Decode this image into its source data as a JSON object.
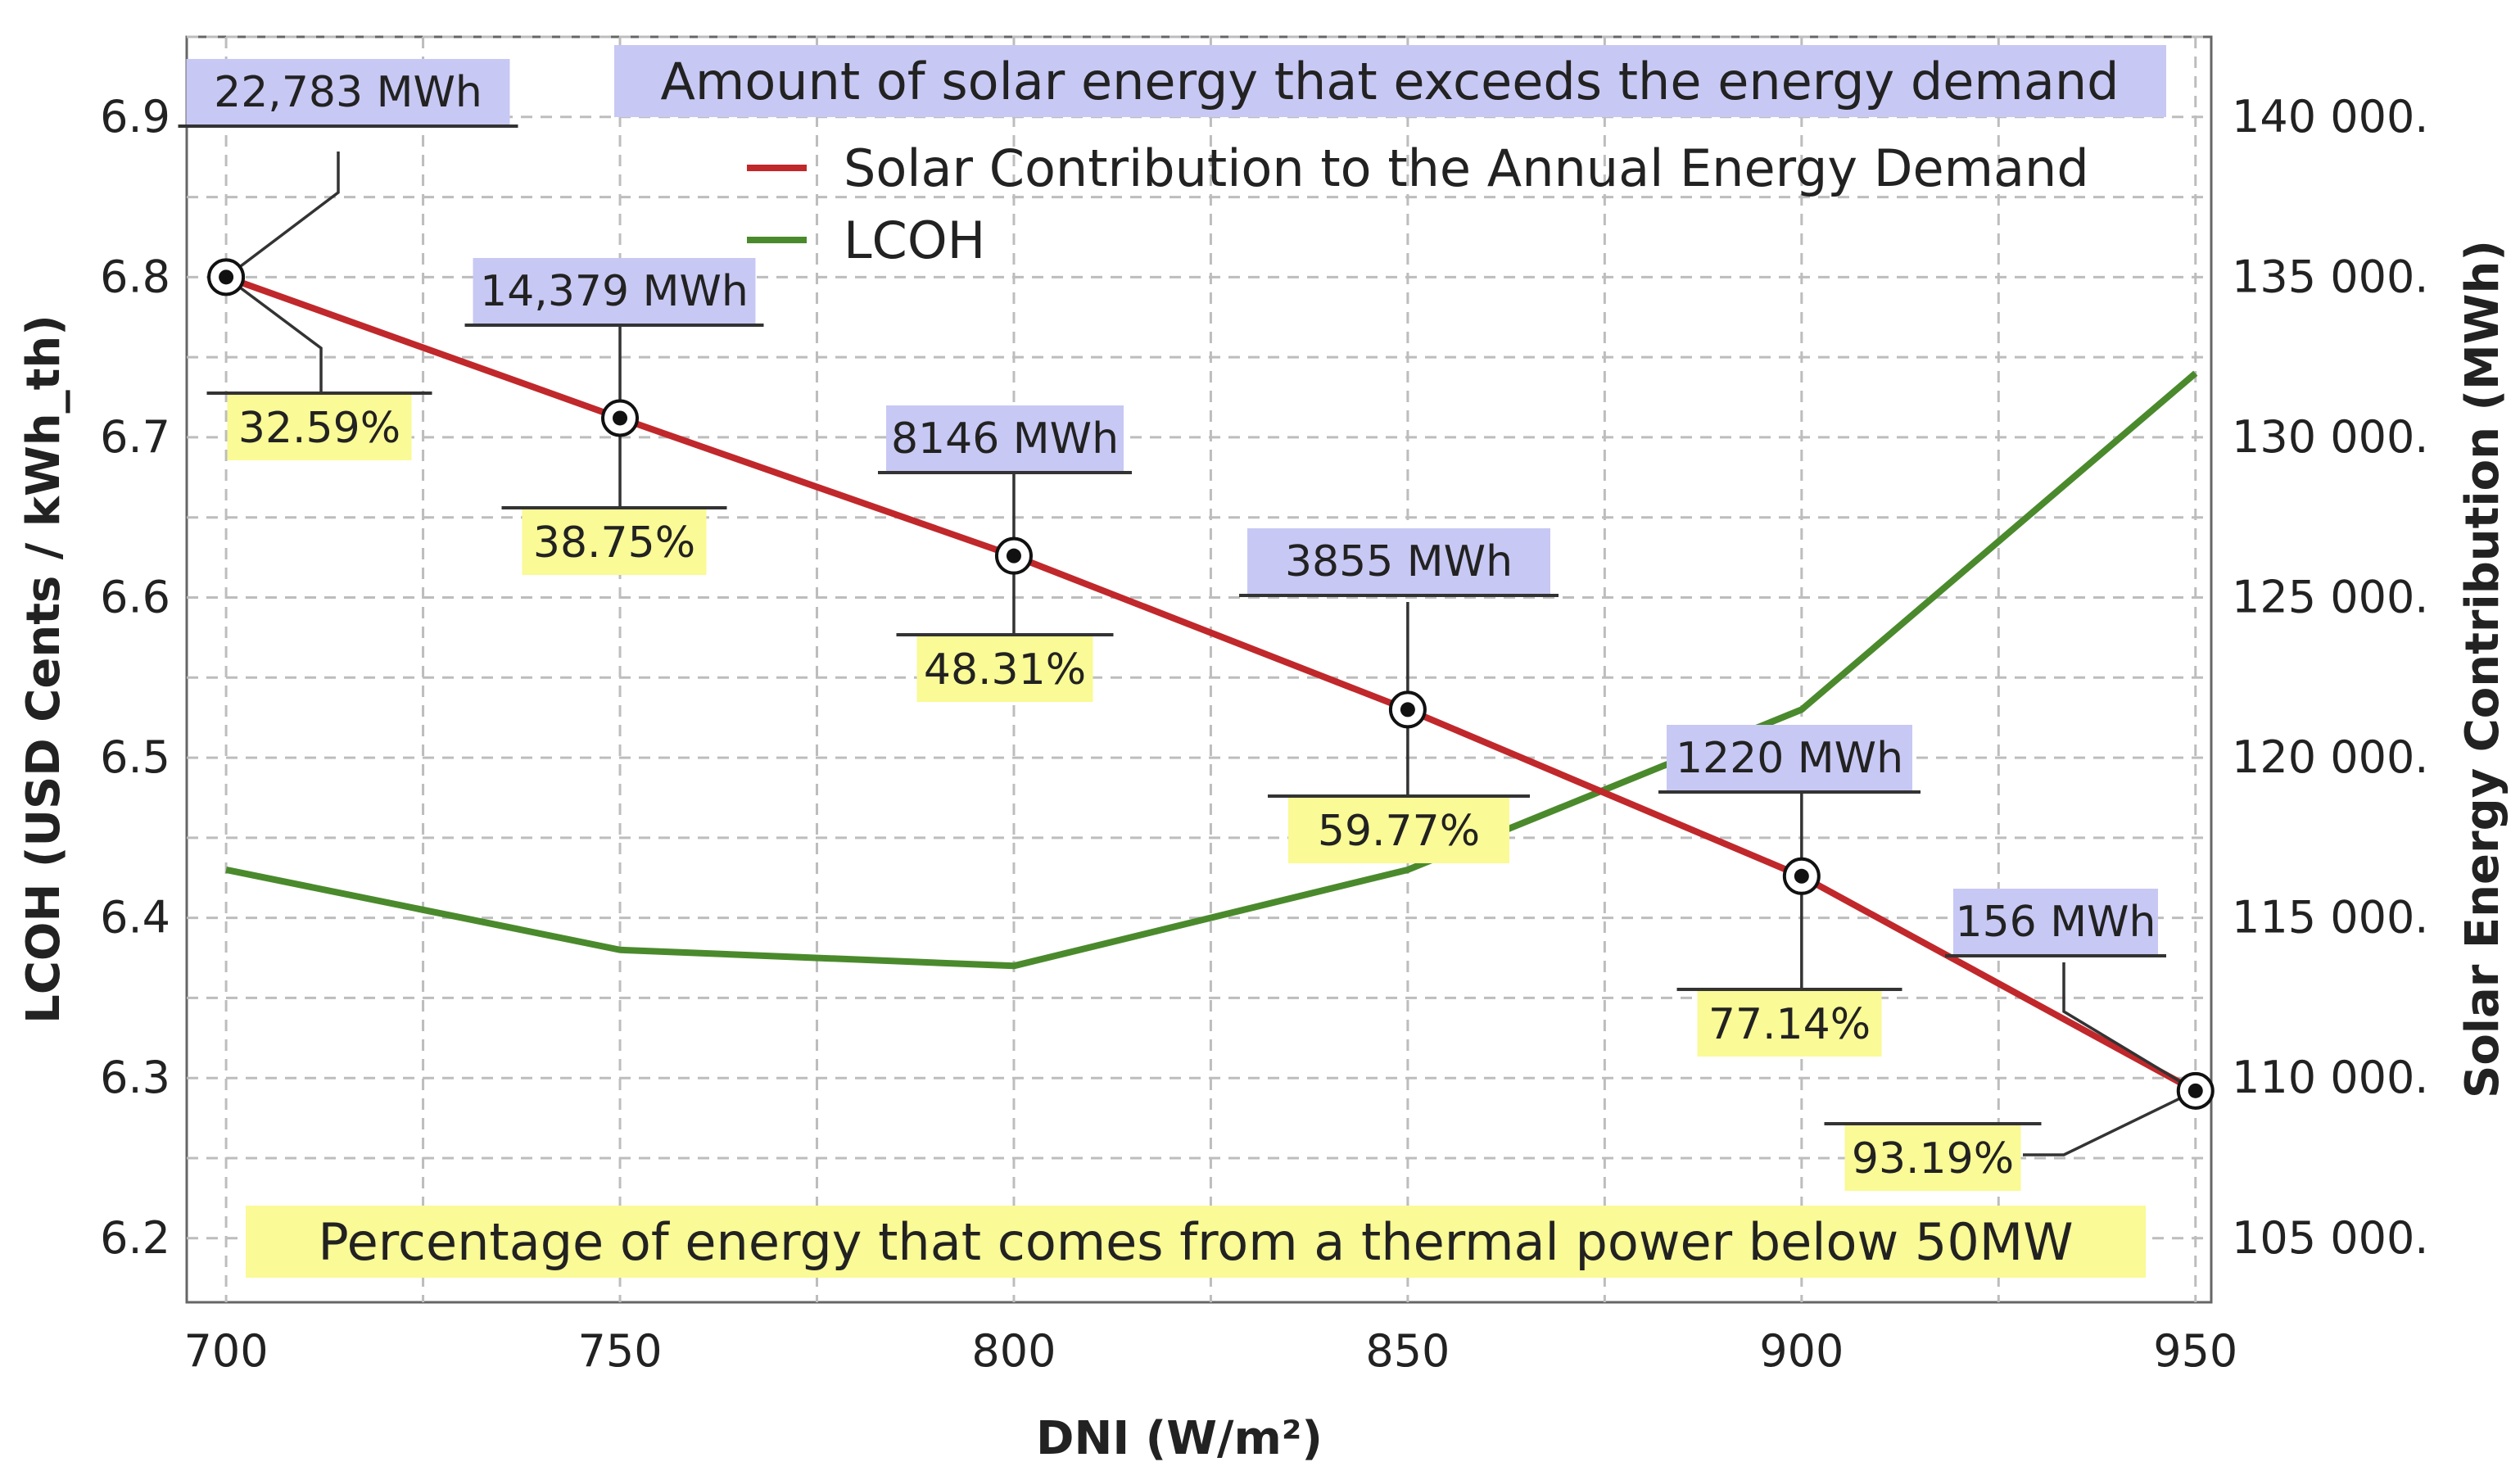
{
  "chart_data": {
    "type": "line",
    "title": "",
    "xlabel": "DNI (W/m²)",
    "ylabel_left": "LCOH (USD Cents / kWh_th)",
    "ylabel_right": "Solar Energy Contribution (MWh)",
    "x": [
      700,
      750,
      800,
      850,
      900,
      950
    ],
    "x_ticks": [
      "700",
      "750",
      "800",
      "850",
      "900",
      "950"
    ],
    "xlim": [
      695,
      952
    ],
    "ylim_left": [
      6.16,
      6.95
    ],
    "ylim_right": [
      103000,
      142500
    ],
    "y_left_ticks": [
      6.2,
      6.3,
      6.4,
      6.5,
      6.6,
      6.7,
      6.8,
      6.9
    ],
    "y_left_tick_labels": [
      "6.2",
      "6.3",
      "6.4",
      "6.5",
      "6.6",
      "6.7",
      "6.8",
      "6.9"
    ],
    "y_right_ticks": [
      105000,
      110000,
      115000,
      120000,
      125000,
      130000,
      135000,
      140000
    ],
    "y_right_tick_labels": [
      "105 000.",
      "110 000.",
      "115 000.",
      "120 000.",
      "125 000.",
      "130 000.",
      "135 000.",
      "140 000."
    ],
    "grid": true,
    "series": [
      {
        "name": "Solar Contribution to the Annual Energy Demand",
        "axis": "right",
        "color": "#c0282b",
        "values": [
          135000,
          130600,
          126300,
          121500,
          116300,
          109600
        ]
      },
      {
        "name": "LCOH",
        "axis": "left",
        "color": "#4a8a2c",
        "values": [
          6.43,
          6.38,
          6.37,
          6.43,
          6.53,
          6.74
        ]
      }
    ],
    "excess_energy_labels": [
      "22,783 MWh",
      "14,379 MWh",
      "8146 MWh",
      "3855 MWh",
      "1220 MWh",
      "156 MWh"
    ],
    "thermal_below_50mw_labels": [
      "32.59%",
      "38.75%",
      "48.31%",
      "59.77%",
      "77.14%",
      "93.19%"
    ],
    "annotations": [
      "Amount of solar energy that exceeds the energy demand",
      "Percentage of energy that comes from a thermal power below 50MW"
    ]
  },
  "colors": {
    "excess_box": "#c8c8f4",
    "percent_box": "#fafa96",
    "grid": "#bdbdbd"
  }
}
